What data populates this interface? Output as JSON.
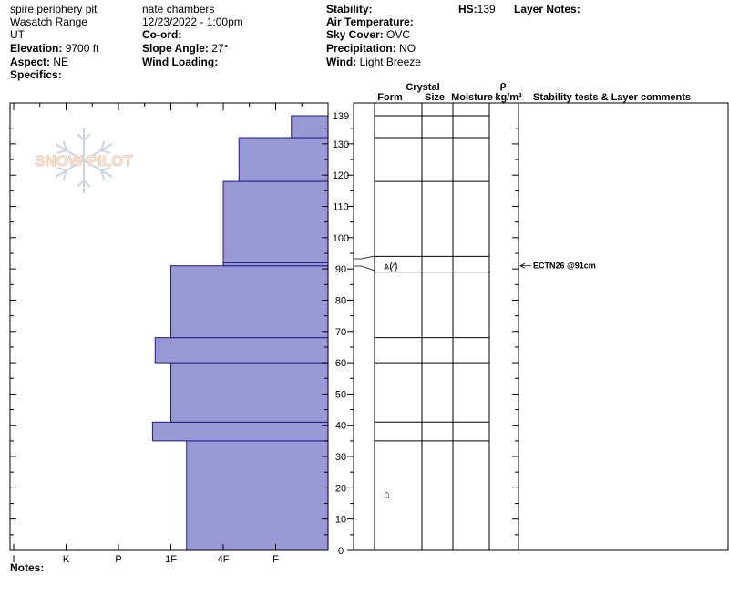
{
  "header": {
    "pit_name": "spire periphery pit",
    "range": "Wasatch Range",
    "state": "UT",
    "elevation_label": "Elevation:",
    "elevation_value": "9700 ft",
    "aspect_label": "Aspect:",
    "aspect_value": "NE",
    "specifics_label": "Specifics:",
    "observer": "nate chambers",
    "datetime": "12/23/2022 - 1:00pm",
    "coord_label": "Co-ord:",
    "slope_label": "Slope Angle:",
    "slope_value": "27°",
    "wind_loading_label": "Wind Loading:",
    "stability_label": "Stability:",
    "air_temp_label": "Air Temperature:",
    "sky_label": "Sky Cover:",
    "sky_value": "OVC",
    "precip_label": "Precipitation:",
    "precip_value": "NO",
    "wind_label": "Wind:",
    "wind_value": "Light Breeze",
    "hs_label": "HS:",
    "hs_value": "139",
    "layer_notes_label": "Layer Notes:"
  },
  "notes_label": "Notes:",
  "watermark": {
    "text": "SNOW PILOT",
    "icon": "snowflake-icon"
  },
  "columns": {
    "crystal": "Crystal",
    "form": "Form",
    "size": "Size",
    "moisture": "Moisture",
    "rho": "ρ",
    "density_unit": "kg/m³",
    "comments": "Stability tests & Layer comments"
  },
  "chart_data": {
    "type": "bar",
    "orientation": "horizontal",
    "x_categories": [
      "I",
      "K",
      "P",
      "1F",
      "4F",
      "F"
    ],
    "x_scale_values": {
      "I": 6,
      "K": 5,
      "P": 4,
      "1F": 3,
      "4F": 2,
      "F": 1
    },
    "y_ticks": [
      0,
      10,
      20,
      30,
      40,
      50,
      60,
      70,
      80,
      90,
      100,
      110,
      120,
      130,
      139
    ],
    "ylim": [
      0,
      139
    ],
    "hardness_layers": [
      {
        "bottom": 0,
        "top": 35,
        "hardness": 2.7
      },
      {
        "bottom": 35,
        "top": 41,
        "hardness": 3.35
      },
      {
        "bottom": 41,
        "top": 60,
        "hardness": 3.0
      },
      {
        "bottom": 60,
        "top": 68,
        "hardness": 3.3
      },
      {
        "bottom": 68,
        "top": 91,
        "hardness": 3.0
      },
      {
        "bottom": 91,
        "top": 92,
        "hardness": 2.0
      },
      {
        "bottom": 92,
        "top": 118,
        "hardness": 2.0
      },
      {
        "bottom": 118,
        "top": 132,
        "hardness": 1.7
      },
      {
        "bottom": 132,
        "top": 139,
        "hardness": 0.7
      }
    ],
    "layer_boundaries": [
      35,
      41,
      60,
      68,
      89,
      94,
      118,
      132,
      139
    ],
    "grain_symbols": [
      {
        "height": 91,
        "text": "⩓(⁄)"
      },
      {
        "height": 18,
        "text": "⌂"
      }
    ],
    "stability_test": {
      "height": 91,
      "text": "ECTN26 @91cm"
    },
    "colors": {
      "fill": "#9898d4",
      "stroke": "#1a1a8c"
    }
  }
}
